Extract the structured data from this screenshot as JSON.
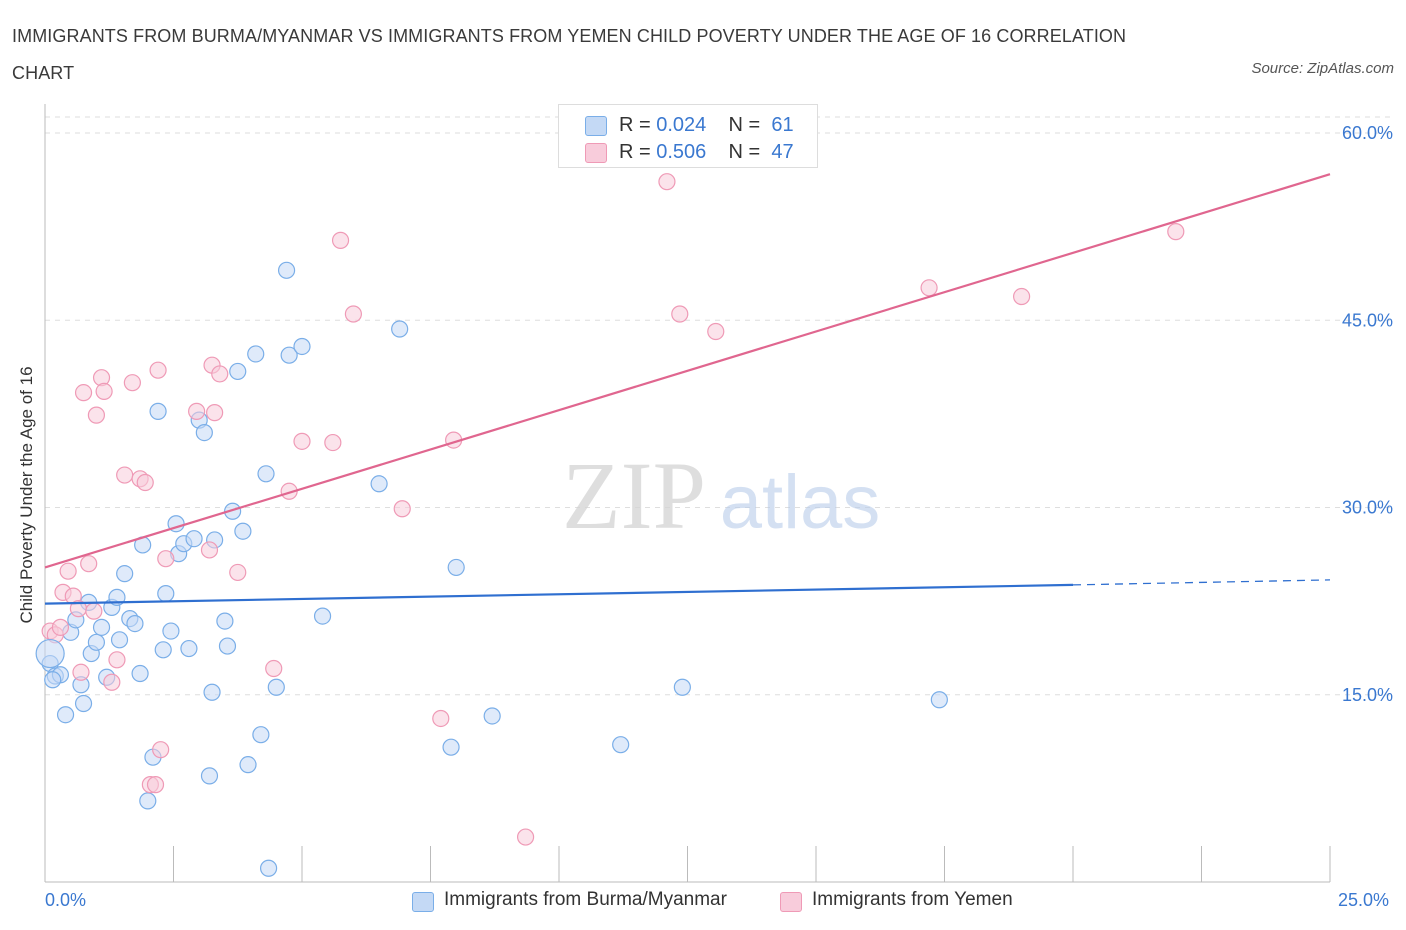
{
  "title": "IMMIGRANTS FROM BURMA/MYANMAR VS IMMIGRANTS FROM YEMEN CHILD POVERTY UNDER THE AGE OF 16 CORRELATION CHART",
  "source": "Source: ZipAtlas.com",
  "watermark": {
    "zip": "ZIP",
    "atlas": "atlas"
  },
  "legend_top": [
    {
      "r_label": "R = ",
      "r_value": "0.024",
      "n_label": "N = ",
      "n_value": "61"
    },
    {
      "r_label": "R = ",
      "r_value": "0.506",
      "n_label": "N = ",
      "n_value": "47"
    }
  ],
  "chart_data": {
    "type": "scatter",
    "ylabel": "Child Poverty Under the Age of 16",
    "xlabel": "",
    "xlim": [
      0,
      25
    ],
    "ylim": [
      0,
      60
    ],
    "x_tick_labels": [
      "0.0%",
      "25.0%"
    ],
    "y_tick_labels": [
      "15.0%",
      "30.0%",
      "45.0%",
      "60.0%"
    ],
    "y_ticks": [
      15,
      30,
      45,
      60
    ],
    "grid": "horizontal dashed",
    "legend_placement": "bottom-center",
    "series": [
      {
        "name": "Immigrants from Burma/Myanmar",
        "color": "#7aaee8",
        "fill": "#c4d9f5",
        "line_color": "#2f6fd0",
        "trend": {
          "x0": 0,
          "y0": 22.3,
          "x1": 20,
          "y1": 23.8,
          "dash_to": 25,
          "dash_y": 24.2
        },
        "points": [
          [
            0.1,
            17.5
          ],
          [
            0.2,
            16.5
          ],
          [
            0.3,
            16.6
          ],
          [
            0.4,
            13.4
          ],
          [
            0.5,
            20.0
          ],
          [
            0.6,
            21.0
          ],
          [
            0.7,
            15.8
          ],
          [
            0.75,
            14.3
          ],
          [
            0.85,
            22.4
          ],
          [
            0.9,
            18.3
          ],
          [
            1.0,
            19.2
          ],
          [
            1.1,
            20.4
          ],
          [
            1.2,
            16.4
          ],
          [
            1.3,
            22.0
          ],
          [
            1.4,
            22.8
          ],
          [
            1.45,
            19.4
          ],
          [
            1.55,
            24.7
          ],
          [
            1.65,
            21.1
          ],
          [
            1.75,
            20.7
          ],
          [
            1.85,
            16.7
          ],
          [
            1.9,
            27.0
          ],
          [
            2.0,
            6.5
          ],
          [
            2.1,
            10.0
          ],
          [
            2.2,
            37.7
          ],
          [
            2.3,
            18.6
          ],
          [
            2.35,
            23.1
          ],
          [
            2.45,
            20.1
          ],
          [
            2.55,
            28.7
          ],
          [
            2.6,
            26.3
          ],
          [
            2.7,
            27.1
          ],
          [
            2.8,
            18.7
          ],
          [
            2.9,
            27.5
          ],
          [
            3.0,
            37.0
          ],
          [
            3.1,
            36.0
          ],
          [
            3.2,
            8.5
          ],
          [
            3.25,
            15.2
          ],
          [
            3.3,
            27.4
          ],
          [
            3.5,
            20.9
          ],
          [
            3.55,
            18.9
          ],
          [
            3.65,
            29.7
          ],
          [
            3.75,
            40.9
          ],
          [
            3.85,
            28.1
          ],
          [
            3.95,
            9.4
          ],
          [
            4.1,
            42.3
          ],
          [
            4.2,
            11.8
          ],
          [
            4.3,
            32.7
          ],
          [
            4.35,
            1.1
          ],
          [
            4.5,
            15.6
          ],
          [
            4.7,
            49.0
          ],
          [
            4.75,
            42.2
          ],
          [
            5.0,
            42.9
          ],
          [
            5.4,
            21.3
          ],
          [
            6.5,
            31.9
          ],
          [
            6.9,
            44.3
          ],
          [
            7.9,
            10.8
          ],
          [
            8.0,
            25.2
          ],
          [
            8.7,
            13.3
          ],
          [
            11.2,
            11.0
          ],
          [
            12.4,
            15.6
          ],
          [
            17.4,
            14.6
          ],
          [
            0.15,
            16.2
          ]
        ]
      },
      {
        "name": "Immigrants from Yemen",
        "color": "#ef9ab6",
        "fill": "#f8ccdb",
        "line_color": "#e0668f",
        "trend": {
          "x0": 0,
          "y0": 25.2,
          "x1": 25,
          "y1": 56.7
        },
        "points": [
          [
            0.1,
            20.1
          ],
          [
            0.2,
            19.8
          ],
          [
            0.3,
            20.4
          ],
          [
            0.35,
            23.2
          ],
          [
            0.45,
            24.9
          ],
          [
            0.55,
            22.9
          ],
          [
            0.65,
            21.9
          ],
          [
            0.7,
            16.8
          ],
          [
            0.75,
            39.2
          ],
          [
            0.85,
            25.5
          ],
          [
            0.95,
            21.7
          ],
          [
            1.0,
            37.4
          ],
          [
            1.1,
            40.4
          ],
          [
            1.15,
            39.3
          ],
          [
            1.3,
            16.0
          ],
          [
            1.4,
            17.8
          ],
          [
            1.55,
            32.6
          ],
          [
            1.7,
            40.0
          ],
          [
            1.85,
            32.3
          ],
          [
            1.95,
            32.0
          ],
          [
            2.05,
            7.8
          ],
          [
            2.15,
            7.8
          ],
          [
            2.2,
            41.0
          ],
          [
            2.25,
            10.6
          ],
          [
            2.35,
            25.9
          ],
          [
            2.95,
            37.7
          ],
          [
            3.2,
            26.6
          ],
          [
            3.25,
            41.4
          ],
          [
            3.3,
            37.6
          ],
          [
            3.4,
            40.7
          ],
          [
            3.75,
            24.8
          ],
          [
            4.45,
            17.1
          ],
          [
            4.75,
            31.3
          ],
          [
            5.0,
            35.3
          ],
          [
            5.6,
            35.2
          ],
          [
            5.75,
            51.4
          ],
          [
            6.0,
            45.5
          ],
          [
            6.95,
            29.9
          ],
          [
            7.7,
            13.1
          ],
          [
            7.95,
            35.4
          ],
          [
            9.35,
            3.6
          ],
          [
            12.1,
            56.1
          ],
          [
            12.35,
            45.5
          ],
          [
            13.05,
            44.1
          ],
          [
            17.2,
            47.6
          ],
          [
            19.0,
            46.9
          ],
          [
            22.0,
            52.1
          ]
        ]
      }
    ]
  }
}
